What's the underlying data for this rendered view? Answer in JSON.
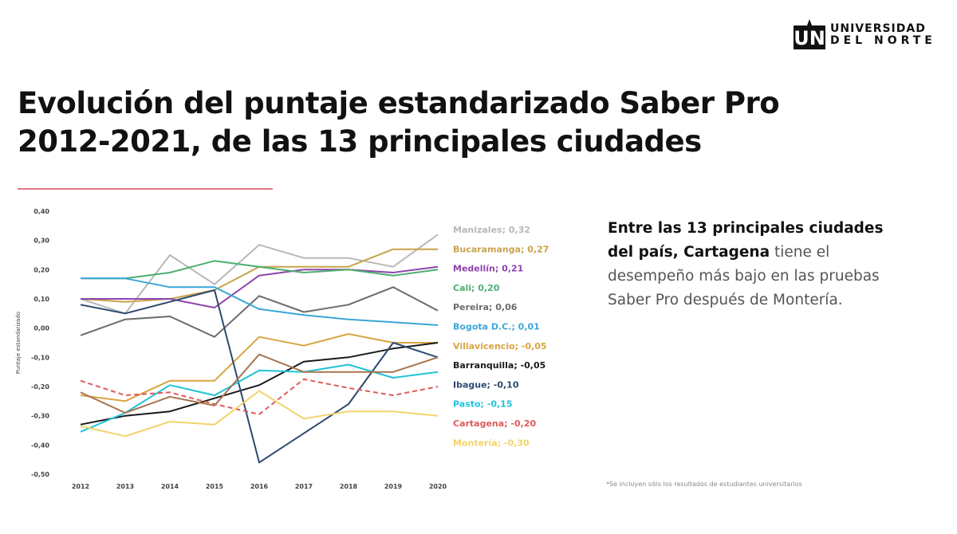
{
  "brand": {
    "logo_mark": "UN",
    "line1": "UNIVERSIDAD",
    "line2": "DEL NORTE",
    "icon": "university-logo-icon"
  },
  "title": {
    "line1": "Evolución del puntaje estandarizado Saber Pro",
    "line2": "2012-2021, de las 13 principales ciudades"
  },
  "side_text": {
    "bold": "Entre las 13 principales ciudades del país, Cartagena",
    "normal": "tiene el desempeño más bajo en las pruebas Saber Pro después de Montería."
  },
  "footnote": "*Se incluyen sólo los resultados de estudiantes universitarios",
  "chart_data": {
    "type": "line",
    "title": "Evolución del puntaje estandarizado Saber Pro 2012-2021",
    "xlabel": "",
    "ylabel": "Puntaje estandarizado",
    "x": [
      2012,
      2013,
      2014,
      2015,
      2016,
      2017,
      2018,
      2019,
      2020
    ],
    "ylim": [
      -0.5,
      0.4
    ],
    "yticks": [
      0.4,
      0.3,
      0.2,
      0.1,
      0.0,
      -0.1,
      -0.2,
      -0.3,
      -0.4,
      -0.5
    ],
    "ytick_labels": [
      "0,40",
      "0,30",
      "0,20",
      "0,10",
      "0,00",
      "-0,10",
      "-0,20",
      "-0,30",
      "-0,40",
      "-0,50"
    ],
    "grid": false,
    "legend_position": "right",
    "series": [
      {
        "name": "Manizales",
        "label": "Manizales; 0,32",
        "color": "#b8b8b8",
        "values": [
          0.1,
          0.05,
          0.25,
          0.15,
          0.285,
          0.24,
          0.24,
          0.21,
          0.32
        ]
      },
      {
        "name": "Bucaramanga",
        "label": "Bucaramanga; 0,27",
        "color": "#c9a24a",
        "values": [
          0.1,
          0.09,
          0.1,
          0.13,
          0.21,
          0.21,
          0.21,
          0.27,
          0.27
        ]
      },
      {
        "name": "Medellín",
        "label": "Medellín; 0,21",
        "color": "#8e44ad",
        "values": [
          0.1,
          0.1,
          0.1,
          0.07,
          0.18,
          0.2,
          0.2,
          0.19,
          0.21
        ]
      },
      {
        "name": "Cali",
        "label": "Cali; 0,20",
        "color": "#4caf6e",
        "values": [
          0.17,
          0.17,
          0.19,
          0.23,
          0.21,
          0.19,
          0.2,
          0.18,
          0.2
        ]
      },
      {
        "name": "Pereira",
        "label": "Pereira; 0,06",
        "color": "#6b6b6b",
        "values": [
          -0.025,
          0.03,
          0.04,
          -0.03,
          0.11,
          0.055,
          0.08,
          0.14,
          0.06
        ]
      },
      {
        "name": "Bogota D.C.",
        "label": "Bogota D.C.; 0,01",
        "color": "#3aa6d8",
        "values": [
          0.17,
          0.17,
          0.14,
          0.14,
          0.065,
          0.045,
          0.03,
          0.02,
          0.01
        ]
      },
      {
        "name": "Villavicencio",
        "label": "Villavicencio; -0,05",
        "color": "#d9a441",
        "values": [
          -0.23,
          -0.25,
          -0.18,
          -0.18,
          -0.03,
          -0.06,
          -0.02,
          -0.05,
          -0.05
        ]
      },
      {
        "name": "Barranquilla",
        "label": "Barranquilla; -0,05",
        "color": "#1a1a1a",
        "values": [
          -0.33,
          -0.3,
          -0.285,
          -0.24,
          -0.195,
          -0.115,
          -0.1,
          -0.07,
          -0.05
        ]
      },
      {
        "name": "Ibague",
        "label": "Ibague; -0,10",
        "color": "#2c4a6e",
        "values": [
          0.08,
          0.05,
          0.09,
          0.13,
          -0.46,
          -0.36,
          -0.26,
          -0.05,
          -0.1
        ]
      },
      {
        "name": "Pasto",
        "label": "Pasto; -0,15",
        "color": "#1fc3d6",
        "values": [
          -0.355,
          -0.29,
          -0.195,
          -0.23,
          -0.145,
          -0.15,
          -0.125,
          -0.17,
          -0.15
        ]
      },
      {
        "name": "Cartagena",
        "label": "Cartagena; -0,20",
        "color": "#e05a5a",
        "dashed": true,
        "values": [
          -0.18,
          -0.23,
          -0.22,
          -0.26,
          -0.295,
          -0.175,
          -0.205,
          -0.23,
          -0.2
        ]
      },
      {
        "name": "Montería",
        "label": "Montería; -0,30",
        "color": "#f2d36b",
        "values": [
          -0.335,
          -0.37,
          -0.32,
          -0.33,
          -0.215,
          -0.31,
          -0.285,
          -0.285,
          -0.3
        ]
      },
      {
        "name": "",
        "label": "",
        "color": "#a8754f",
        "values": [
          -0.22,
          -0.29,
          -0.235,
          -0.265,
          -0.09,
          -0.15,
          -0.15,
          -0.15,
          -0.1
        ]
      }
    ]
  }
}
